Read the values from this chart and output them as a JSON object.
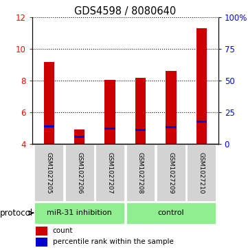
{
  "title": "GDS4598 / 8080640",
  "samples": [
    "GSM1027205",
    "GSM1027206",
    "GSM1027207",
    "GSM1027208",
    "GSM1027209",
    "GSM1027210"
  ],
  "counts": [
    9.2,
    4.9,
    8.05,
    8.2,
    8.6,
    11.3
  ],
  "percentiles": [
    5.1,
    4.45,
    5.0,
    4.9,
    5.05,
    5.4
  ],
  "ylim_left": [
    4,
    12
  ],
  "ylim_right": [
    0,
    100
  ],
  "yticks_left": [
    4,
    6,
    8,
    10,
    12
  ],
  "yticks_right": [
    0,
    25,
    50,
    75,
    100
  ],
  "ytick_labels_right": [
    "0",
    "25",
    "50",
    "75",
    "100%"
  ],
  "groups": [
    {
      "label": "miR-31 inhibition",
      "span": [
        0,
        2
      ]
    },
    {
      "label": "control",
      "span": [
        3,
        5
      ]
    }
  ],
  "group_color": "#90EE90",
  "bar_color": "#CC0000",
  "percentile_color": "#0000CC",
  "bar_width": 0.35,
  "baseline": 4,
  "background_sample": "#d3d3d3",
  "protocol_label": "protocol",
  "legend_items": [
    {
      "label": "count",
      "color": "#CC0000"
    },
    {
      "label": "percentile rank within the sample",
      "color": "#0000CC"
    }
  ]
}
